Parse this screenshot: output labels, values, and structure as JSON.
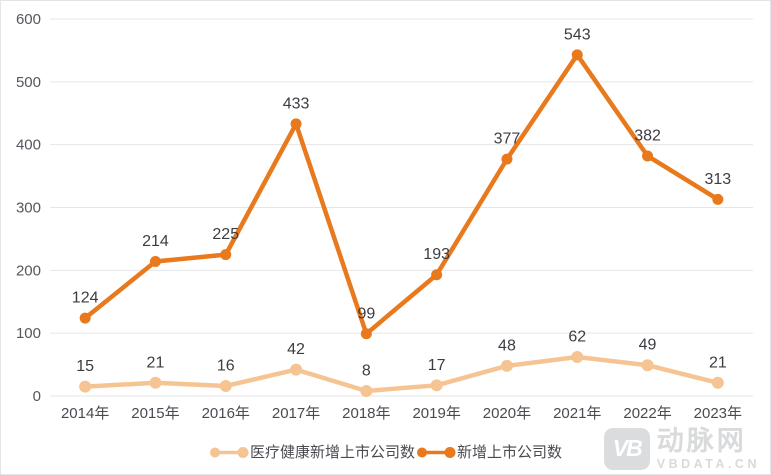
{
  "chart_data": {
    "type": "line",
    "title": "",
    "xlabel": "",
    "ylabel": "",
    "categories": [
      "2014年",
      "2015年",
      "2016年",
      "2017年",
      "2018年",
      "2019年",
      "2020年",
      "2021年",
      "2022年",
      "2023年"
    ],
    "series": [
      {
        "name": "医疗健康新增上市公司数",
        "color": "#F6C493",
        "marker_radius": 6,
        "values": [
          15,
          21,
          16,
          42,
          8,
          17,
          48,
          62,
          49,
          21
        ]
      },
      {
        "name": "新增上市公司数",
        "color": "#E8791C",
        "marker_radius": 5.5,
        "values": [
          124,
          214,
          225,
          433,
          99,
          193,
          377,
          543,
          382,
          313
        ]
      }
    ],
    "ylim": [
      0,
      600
    ],
    "yticks": [
      0,
      100,
      200,
      300,
      400,
      500,
      600
    ],
    "grid": true,
    "legend_position": "bottom",
    "colors": {
      "grid": "#e6e6e9",
      "axis_tick_text": "#55565e",
      "category_text": "#4a4b52",
      "data_label_text": "#3c3d42",
      "background": "#ffffff",
      "border": "#e3e4e7"
    }
  },
  "watermark": {
    "logo_text": "VB",
    "brand": "动脉网",
    "domain": "VBDATA.CN",
    "color": "#d9dadb"
  }
}
